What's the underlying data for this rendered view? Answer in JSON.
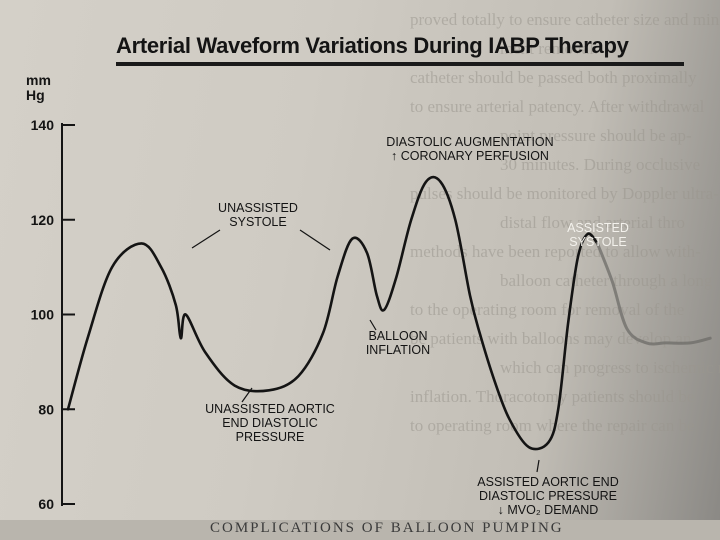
{
  "chart_data": {
    "type": "line",
    "title": "Arterial Waveform Variations During IABP Therapy",
    "ylabel": "mm Hg",
    "ylim": [
      60,
      140
    ],
    "yticks": [
      140,
      120,
      100,
      80,
      60
    ],
    "grid": false,
    "series": [
      {
        "style": "solid",
        "points": [
          [
            0.0,
            80
          ],
          [
            0.08,
            95
          ],
          [
            0.18,
            110
          ],
          [
            0.3,
            115
          ],
          [
            0.38,
            110
          ],
          [
            0.44,
            102
          ],
          [
            0.46,
            95
          ],
          [
            0.48,
            100
          ],
          [
            0.56,
            92
          ],
          [
            0.68,
            85
          ],
          [
            0.82,
            84
          ],
          [
            0.94,
            87
          ],
          [
            1.04,
            96
          ],
          [
            1.1,
            108
          ],
          [
            1.16,
            116
          ],
          [
            1.22,
            113
          ],
          [
            1.26,
            104
          ],
          [
            1.29,
            101
          ],
          [
            1.34,
            108
          ],
          [
            1.4,
            120
          ],
          [
            1.46,
            128
          ],
          [
            1.52,
            128
          ],
          [
            1.58,
            120
          ],
          [
            1.64,
            104
          ],
          [
            1.68,
            96
          ],
          [
            1.74,
            86
          ],
          [
            1.8,
            78
          ],
          [
            1.88,
            72
          ],
          [
            1.96,
            73
          ],
          [
            2.0,
            80
          ],
          [
            2.04,
            98
          ],
          [
            2.08,
            112
          ],
          [
            2.12,
            117
          ],
          [
            2.16,
            115
          ]
        ]
      },
      {
        "style": "faint",
        "points": [
          [
            2.16,
            115
          ],
          [
            2.22,
            107
          ],
          [
            2.28,
            97
          ],
          [
            2.36,
            94
          ],
          [
            2.44,
            94
          ],
          [
            2.54,
            94
          ],
          [
            2.62,
            95
          ]
        ]
      }
    ],
    "annotations": [
      {
        "lines": [
          "UNASSISTED",
          "SYSTOLE"
        ],
        "x": 0.34,
        "y": 114,
        "style": "normal"
      },
      {
        "lines": [
          "DIASTOLIC AUGMENTATION",
          "↑ CORONARY PERFUSION"
        ],
        "x": 1.49,
        "y": 129,
        "style": "normal"
      },
      {
        "lines": [
          "BALLOON",
          "INFLATION"
        ],
        "x": 1.3,
        "y": 100,
        "style": "normal"
      },
      {
        "lines": [
          "UNASSISTED AORTIC",
          "END DIASTOLIC",
          "PRESSURE"
        ],
        "x": 0.84,
        "y": 84,
        "style": "normal"
      },
      {
        "lines": [
          "ASSISTED",
          "SYSTOLE"
        ],
        "x": 2.12,
        "y": 117,
        "style": "faint"
      },
      {
        "lines": [
          "ASSISTED AORTIC END",
          "DIASTOLIC PRESSURE",
          "↓ MVO₂ DEMAND"
        ],
        "x": 1.93,
        "y": 72,
        "style": "normal"
      }
    ]
  },
  "page": {
    "title": "Arterial Waveform Variations During IABP Therapy",
    "unit_line1": "mm",
    "unit_line2": "Hg",
    "background_text": [
      "proved totally to ensure catheter size and mini-",
      "ment removal.",
      "catheter should be passed both proximally",
      "to ensure arterial patency. After withdrawal",
      "point pressure should be ap-",
      "30 minutes. During occlusive",
      "pulses should be monitored by Doppler ultra-",
      "distal flow and arterial thro",
      "methods have been reported to allow with-",
      "balloon catheter through a long",
      "to the operating room for removal of the",
      "be patients with balloons may develop an",
      "which can progress to ischemic minimal",
      "inflation. Thoracotomy patients should be",
      "to operating room where the repair can be"
    ],
    "bottom_text": "COMPLICATIONS OF BALLOON PUMPING"
  },
  "colors": {
    "ink": "#141414",
    "faint_trace": "#6e6c68",
    "paper": "#d2cec6"
  }
}
